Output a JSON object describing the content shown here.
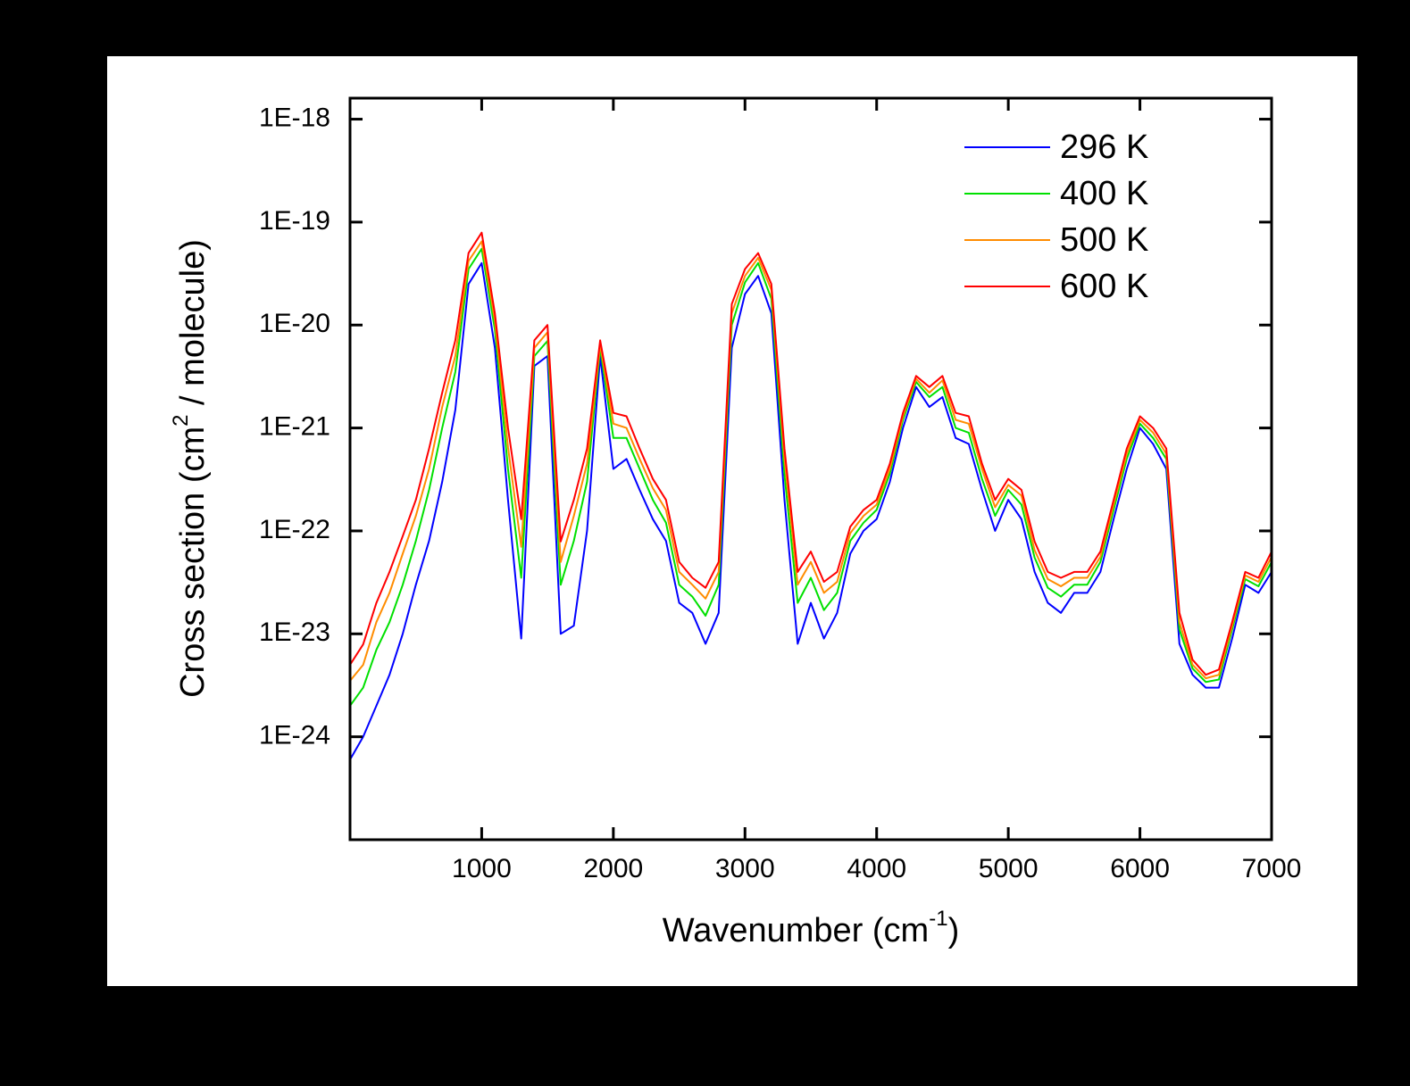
{
  "chart_data": {
    "type": "line",
    "x_label": "Wavenumber (cm",
    "x_label_sup": "-1",
    "x_label_end": ")",
    "y_label": "Cross section (cm",
    "y_label_sup": "2",
    "y_label_end": " / molecule)",
    "x": [
      0,
      100,
      200,
      300,
      400,
      500,
      600,
      700,
      800,
      900,
      1000,
      1100,
      1200,
      1300,
      1400,
      1500,
      1600,
      1700,
      1800,
      1900,
      2000,
      2100,
      2200,
      2300,
      2400,
      2500,
      2600,
      2700,
      2800,
      2900,
      3000,
      3100,
      3200,
      3300,
      3400,
      3500,
      3600,
      3700,
      3800,
      3900,
      4000,
      4100,
      4200,
      4300,
      4400,
      4500,
      4600,
      4700,
      4800,
      4900,
      5000,
      5100,
      5200,
      5300,
      5400,
      5500,
      5600,
      5700,
      5800,
      5900,
      6000,
      6100,
      6200,
      6300,
      6400,
      6500,
      6600,
      6700,
      6800,
      6900,
      7000
    ],
    "series": [
      {
        "name": "296 K",
        "color": "#0000ff",
        "values": [
          6e-25,
          1e-24,
          2e-24,
          4e-24,
          1e-23,
          3e-23,
          8e-23,
          3e-22,
          1.5e-21,
          2.5e-20,
          4e-20,
          6e-21,
          2e-22,
          9e-24,
          4e-21,
          5e-21,
          1e-23,
          1.2e-23,
          1e-22,
          5e-21,
          4e-22,
          5e-22,
          2.5e-22,
          1.3e-22,
          8e-23,
          2e-23,
          1.6e-23,
          8e-24,
          1.6e-23,
          6e-21,
          2e-20,
          3e-20,
          1.3e-20,
          2e-22,
          8e-24,
          2e-23,
          9e-24,
          1.6e-23,
          6e-23,
          1e-22,
          1.3e-22,
          3e-22,
          1e-21,
          2.5e-21,
          1.6e-21,
          2e-21,
          8e-22,
          7e-22,
          2.5e-22,
          1e-22,
          2e-22,
          1.3e-22,
          4e-23,
          2e-23,
          1.6e-23,
          2.5e-23,
          2.5e-23,
          4e-23,
          1.3e-22,
          4e-22,
          1e-21,
          7e-22,
          4e-22,
          8e-24,
          4e-24,
          3e-24,
          3e-24,
          9e-24,
          3e-23,
          2.5e-23,
          4e-23
        ]
      },
      {
        "name": "400 K",
        "color": "#00e000",
        "values": [
          2e-24,
          3e-24,
          7e-24,
          1.3e-23,
          3e-23,
          8e-23,
          2.5e-22,
          1e-21,
          3.5e-21,
          3.5e-20,
          5.5e-20,
          9e-21,
          4e-22,
          3.5e-23,
          5e-21,
          7e-21,
          3e-23,
          8e-23,
          3e-22,
          6e-21,
          8e-22,
          8e-22,
          4e-22,
          2e-22,
          1.2e-22,
          3e-23,
          2.3e-23,
          1.5e-23,
          3e-23,
          1e-20,
          2.6e-20,
          4e-20,
          1.8e-20,
          3.5e-22,
          2e-23,
          3.5e-23,
          1.7e-23,
          2.5e-23,
          8e-23,
          1.2e-22,
          1.6e-22,
          3.6e-22,
          1.2e-21,
          2.8e-21,
          2e-21,
          2.5e-21,
          1e-21,
          9e-22,
          3.2e-22,
          1.4e-22,
          2.5e-22,
          1.8e-22,
          5.5e-23,
          2.8e-23,
          2.3e-23,
          3e-23,
          3e-23,
          5e-23,
          1.6e-22,
          5e-22,
          1.1e-21,
          8e-22,
          5e-22,
          1.1e-23,
          4.6e-24,
          3.4e-24,
          3.6e-24,
          1.1e-23,
          3.4e-23,
          2.9e-23,
          5e-23
        ]
      },
      {
        "name": "500 K",
        "color": "#ff8c00",
        "values": [
          3.5e-24,
          5e-24,
          1.3e-23,
          2.5e-23,
          6e-23,
          1.4e-22,
          4e-22,
          1.6e-21,
          5e-21,
          4.2e-20,
          6.5e-20,
          1.1e-20,
          6.5e-22,
          7e-23,
          6e-21,
          8.5e-21,
          5e-23,
          1.4e-22,
          4.5e-22,
          6.5e-21,
          1.1e-21,
          1e-21,
          5e-22,
          2.6e-22,
          1.6e-22,
          4e-23,
          3e-23,
          2.2e-23,
          4e-23,
          1.3e-20,
          3e-20,
          4.5e-20,
          2.2e-20,
          5e-22,
          3e-23,
          5e-23,
          2.5e-23,
          3.2e-23,
          9.5e-23,
          1.4e-22,
          1.8e-22,
          4e-22,
          1.3e-21,
          3e-21,
          2.2e-21,
          2.9e-21,
          1.2e-21,
          1.1e-21,
          4e-22,
          1.7e-22,
          2.8e-22,
          2.2e-22,
          6.5e-23,
          3.4e-23,
          2.9e-23,
          3.5e-23,
          3.5e-23,
          5.6e-23,
          1.8e-22,
          5.6e-22,
          1.2e-21,
          9e-22,
          5.6e-22,
          1.3e-23,
          5e-24,
          3.7e-24,
          4e-24,
          1.2e-23,
          3.7e-23,
          3.2e-23,
          5.6e-23
        ]
      },
      {
        "name": "600 K",
        "color": "#ff0000",
        "values": [
          5e-24,
          7.9e-24,
          2e-23,
          4e-23,
          8.9e-23,
          2e-22,
          6.3e-22,
          2.2e-21,
          7.1e-21,
          5e-20,
          7.9e-20,
          1.3e-20,
          1e-21,
          1.3e-22,
          7.1e-21,
          1e-20,
          7.9e-23,
          2e-22,
          6.3e-22,
          7.1e-21,
          1.4e-21,
          1.3e-21,
          6.3e-22,
          3.2e-22,
          2e-22,
          5e-23,
          3.5e-23,
          2.8e-23,
          5e-23,
          1.6e-20,
          3.5e-20,
          5e-20,
          2.5e-20,
          6.3e-22,
          4e-23,
          6.3e-23,
          3.2e-23,
          4e-23,
          1.1e-22,
          1.6e-22,
          2e-22,
          4.5e-22,
          1.4e-21,
          3.2e-21,
          2.5e-21,
          3.2e-21,
          1.4e-21,
          1.3e-21,
          4.5e-22,
          2e-22,
          3.2e-22,
          2.5e-22,
          7.9e-23,
          4e-23,
          3.5e-23,
          4e-23,
          4e-23,
          6.3e-23,
          2e-22,
          6.3e-22,
          1.3e-21,
          1e-21,
          6.3e-22,
          1.6e-23,
          5.6e-24,
          4e-24,
          4.5e-24,
          1.3e-23,
          4e-23,
          3.5e-23,
          6.3e-23
        ]
      }
    ],
    "xlim": [
      0,
      7000
    ],
    "xticks": [
      1000,
      2000,
      3000,
      4000,
      5000,
      6000,
      7000
    ],
    "ylim": [
      1e-25,
      1.6e-18
    ],
    "yscale": "log",
    "yticks": [
      {
        "value": 1e-18,
        "label": "1E-18"
      },
      {
        "value": 1e-19,
        "label": "1E-19"
      },
      {
        "value": 1e-20,
        "label": "1E-20"
      },
      {
        "value": 1e-21,
        "label": "1E-21"
      },
      {
        "value": 1e-22,
        "label": "1E-22"
      },
      {
        "value": 1e-23,
        "label": "1E-23"
      },
      {
        "value": 1e-24,
        "label": "1E-24"
      }
    ],
    "legend": "upper right"
  }
}
